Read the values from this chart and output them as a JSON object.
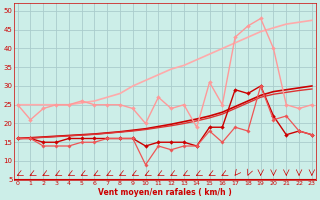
{
  "background_color": "#cceee8",
  "grid_color": "#aacccc",
  "xlabel": "Vent moyen/en rafales ( km/h )",
  "ylabel_ticks": [
    5,
    10,
    15,
    20,
    25,
    30,
    35,
    40,
    45,
    50
  ],
  "xlim": [
    -0.3,
    23.3
  ],
  "ylim": [
    5,
    52
  ],
  "x": [
    0,
    1,
    2,
    3,
    4,
    5,
    6,
    7,
    8,
    9,
    10,
    11,
    12,
    13,
    14,
    15,
    16,
    17,
    18,
    19,
    20,
    21,
    22,
    23
  ],
  "series": [
    {
      "name": "rafales_wavy",
      "y": [
        25,
        21,
        24,
        25,
        25,
        26,
        25,
        25,
        25,
        24,
        20,
        27,
        24,
        25,
        19,
        31,
        25,
        43,
        46,
        48,
        40,
        25,
        24,
        25
      ],
      "color": "#ff9999",
      "lw": 1.0,
      "marker": "D",
      "ms": 2.0,
      "zorder": 3
    },
    {
      "name": "rafales_trend",
      "y": [
        25.0,
        25.0,
        25.0,
        25.0,
        25.0,
        25.5,
        26.0,
        27.0,
        28.0,
        30.0,
        31.5,
        33.0,
        34.5,
        35.5,
        37.0,
        38.5,
        40.0,
        41.5,
        43.0,
        44.5,
        45.5,
        46.5,
        47.0,
        47.5
      ],
      "color": "#ffaaaa",
      "lw": 1.2,
      "marker": null,
      "ms": 0,
      "zorder": 2
    },
    {
      "name": "vent_moyen_wavy",
      "y": [
        16,
        16,
        15,
        15,
        16,
        16,
        16,
        16,
        16,
        16,
        14,
        15,
        15,
        15,
        14,
        19,
        19,
        29,
        28,
        30,
        22,
        17,
        18,
        17
      ],
      "color": "#cc0000",
      "lw": 1.0,
      "marker": "D",
      "ms": 2.0,
      "zorder": 3
    },
    {
      "name": "vent_moyen_trend1",
      "y": [
        16.0,
        16.2,
        16.4,
        16.6,
        16.8,
        17.0,
        17.2,
        17.5,
        17.8,
        18.2,
        18.6,
        19.2,
        19.8,
        20.5,
        21.2,
        22.0,
        23.0,
        24.5,
        26.0,
        27.5,
        28.5,
        29.0,
        29.5,
        30.0
      ],
      "color": "#cc0000",
      "lw": 1.2,
      "marker": null,
      "ms": 0,
      "zorder": 2
    },
    {
      "name": "vent_moyen_trend2",
      "y": [
        16.0,
        16.1,
        16.3,
        16.5,
        16.7,
        16.9,
        17.1,
        17.4,
        17.7,
        18.0,
        18.4,
        18.9,
        19.4,
        20.0,
        20.7,
        21.5,
        22.5,
        24.0,
        25.5,
        27.0,
        27.8,
        28.3,
        28.8,
        29.2
      ],
      "color": "#dd3333",
      "lw": 1.0,
      "marker": null,
      "ms": 0,
      "zorder": 2
    },
    {
      "name": "low_dip",
      "y": [
        16,
        16,
        14,
        14,
        14,
        15,
        15,
        16,
        16,
        16,
        9,
        14,
        13,
        14,
        14,
        18,
        15,
        19,
        18,
        30,
        21,
        22,
        18,
        17
      ],
      "color": "#ee5555",
      "lw": 0.9,
      "marker": "D",
      "ms": 1.8,
      "zorder": 3
    }
  ],
  "wind_arrows": {
    "color": "#cc0000",
    "y_data": 6.2,
    "angles": [
      225,
      225,
      225,
      225,
      225,
      225,
      225,
      225,
      225,
      225,
      225,
      225,
      225,
      225,
      225,
      225,
      225,
      200,
      190,
      180,
      180,
      180,
      180,
      180
    ]
  },
  "xlabel_color": "#cc0000",
  "tick_color": "#cc0000"
}
